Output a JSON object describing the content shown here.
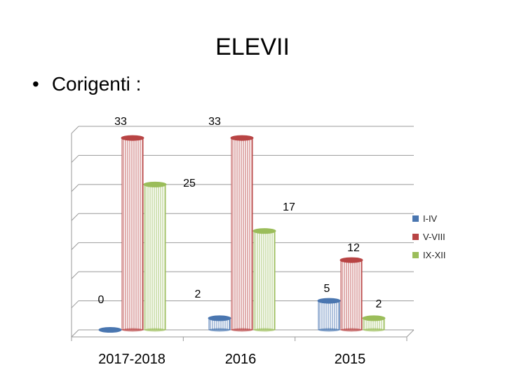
{
  "slide": {
    "title": "ELEVII",
    "bullet": "•",
    "subtitle": "Corigenti :"
  },
  "chart_data": {
    "type": "bar",
    "categories": [
      "2017-2018",
      "2016",
      "2015"
    ],
    "series": [
      {
        "name": "I-IV",
        "values": [
          0,
          2,
          5
        ],
        "color": "#4a76b0"
      },
      {
        "name": "V-VIII",
        "values": [
          33,
          33,
          12
        ],
        "color": "#b84444"
      },
      {
        "name": "IX-XII",
        "values": [
          25,
          17,
          2
        ],
        "color": "#9bbd5a"
      }
    ],
    "ylim": [
      0,
      35
    ],
    "grid": true,
    "legend": "right"
  }
}
